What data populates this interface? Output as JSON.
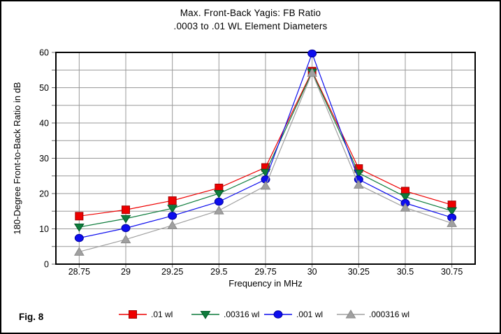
{
  "title": {
    "line1": "Max. Front-Back Yagis: FB Ratio",
    "line2": ".0003 to .01 WL Element Diameters"
  },
  "fig_label": "Fig. 8",
  "colors": {
    "grid": "#999999",
    "frame": "#000000",
    "tick": "#666666",
    "background": "#FFFFFF"
  },
  "chart_data": {
    "type": "line",
    "title": "Max. Front-Back Yagis: FB Ratio",
    "subtitle": ".0003 to .01 WL Element Diameters",
    "xlabel": "Frequency in MHz",
    "ylabel": "180-Degree Front-to-Back Ratio in dB",
    "x": [
      28.75,
      29,
      29.25,
      29.5,
      29.75,
      30,
      30.25,
      30.5,
      30.75
    ],
    "x_tick_labels": [
      "28.75",
      "29",
      "29.25",
      "29.5",
      "29.75",
      "30",
      "30.25",
      "30.5",
      "30.75"
    ],
    "ylim": [
      0,
      60
    ],
    "y_major_ticks": [
      0,
      10,
      20,
      30,
      40,
      50,
      60
    ],
    "y_minor_step": 5,
    "grid": true,
    "legend_position": "bottom",
    "series": [
      {
        "name": ".01 wl",
        "marker": "square",
        "color": "#EE0000",
        "edge": "#A00000",
        "values": [
          13.6,
          15.4,
          18.0,
          21.6,
          27.4,
          54.7,
          27.1,
          20.7,
          16.8
        ]
      },
      {
        "name": ".00316 wl",
        "marker": "triangle-down",
        "color": "#0E7C3C",
        "edge": "#005A26",
        "values": [
          10.5,
          12.9,
          15.8,
          20.0,
          26.0,
          54.4,
          25.8,
          19.1,
          15.1
        ]
      },
      {
        "name": ".001 wl",
        "marker": "circle",
        "color": "#0D0DEE",
        "edge": "#0000A0",
        "values": [
          7.4,
          10.2,
          13.7,
          17.7,
          24.0,
          59.7,
          24.0,
          17.3,
          13.2
        ]
      },
      {
        "name": ".000316 wl",
        "marker": "triangle-up",
        "color": "#A0A0A0",
        "edge": "#8A8A8A",
        "values": [
          3.5,
          7.0,
          11.0,
          15.2,
          22.2,
          54.2,
          22.5,
          16.0,
          11.6
        ]
      }
    ]
  }
}
